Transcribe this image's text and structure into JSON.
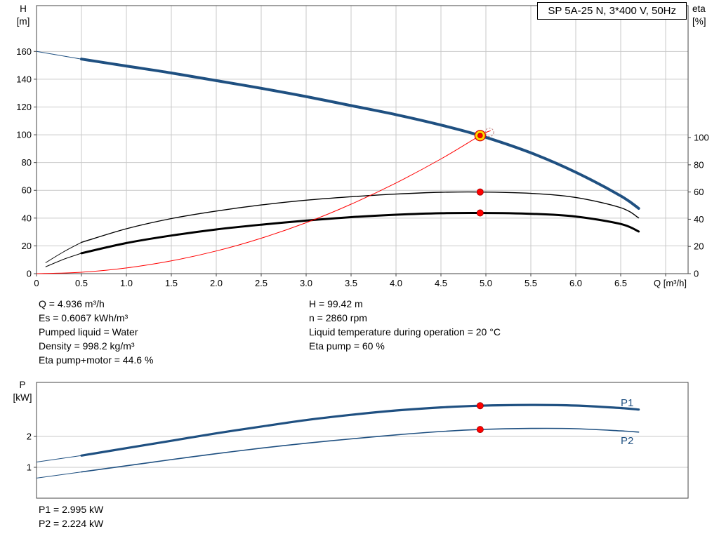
{
  "title_box": "SP 5A-25 N, 3*400 V, 50Hz",
  "axis_units": {
    "h": [
      "H",
      "[m]"
    ],
    "eta": [
      "eta",
      "[%]"
    ],
    "q": "Q [m³/h]",
    "p": [
      "P",
      "[kW]"
    ]
  },
  "curve_labels": {
    "p1": "P1",
    "p2": "P2"
  },
  "info_left": [
    "Q = 4.936 m³/h",
    "Es = 0.6067 kWh/m³",
    "Pumped liquid = Water",
    "Density = 998.2 kg/m³",
    "Eta pump+motor = 44.6 %"
  ],
  "info_right": [
    "H = 99.42 m",
    "n = 2860 rpm",
    "Liquid temperature during operation = 20 °C",
    "Eta pump = 60 %"
  ],
  "power_info": [
    "P1 = 2.995 kW",
    "P2 = 2.224 kW"
  ],
  "colors": {
    "blue": "#1f5081",
    "red": "#ff0000",
    "black": "#000000",
    "grid": "#c9c9c9",
    "border": "#444444",
    "dot_fill": "#ff0000",
    "dot_edge": "#a00000",
    "duty_fill": "#ffd800",
    "duty_ring": "#dd0000",
    "ghost": "#c08585",
    "text": "#000000"
  },
  "chart_data": [
    {
      "id": "main-curve-chart",
      "type": "line",
      "title": "SP 5A-25 N, 3*400 V, 50Hz",
      "xlabel": "Q [m³/h]",
      "ylabel_left": "H [m]",
      "ylabel_right": "eta [%]",
      "xlim": [
        0,
        7.25
      ],
      "ylim_left": [
        0,
        193
      ],
      "ylim_right": [
        0,
        197
      ],
      "grid_vertical": true,
      "x_ticks": [
        0,
        0.5,
        1,
        1.5,
        2,
        2.5,
        3,
        3.5,
        4,
        4.5,
        5,
        5.5,
        6,
        6.5,
        7
      ],
      "x_tick_labels": [
        "0",
        "0.5",
        "1.0",
        "1.5",
        "2.0",
        "2.5",
        "3.0",
        "3.5",
        "4.0",
        "4.5",
        "5.0",
        "5.5",
        "6.0",
        "6.5",
        ""
      ],
      "left_ticks": [
        0,
        20,
        40,
        60,
        80,
        100,
        120,
        140,
        160
      ],
      "right_ticks": [
        0,
        20,
        40,
        60,
        80,
        100
      ],
      "series": [
        {
          "name": "eta-pump-curve",
          "axis": "right",
          "color": "#000000",
          "width": 1.4,
          "thin_lead_until": 0.5,
          "x": [
            0.1,
            0.3,
            0.5,
            1,
            1.5,
            2,
            2.5,
            3,
            3.5,
            4,
            4.5,
            4.936,
            5.5,
            6,
            6.5,
            6.7
          ],
          "y": [
            8,
            16,
            23,
            33,
            40.5,
            46,
            50.5,
            54,
            56.5,
            58.5,
            59.8,
            60,
            59,
            56,
            48.5,
            41
          ]
        },
        {
          "name": "eta-pump-motor-curve",
          "axis": "right",
          "color": "#000000",
          "width": 3,
          "thin_lead_until": 0.5,
          "x": [
            0.1,
            0.3,
            0.5,
            1,
            1.5,
            2,
            2.5,
            3,
            3.5,
            4,
            4.5,
            4.936,
            5.5,
            6,
            6.5,
            6.7
          ],
          "y": [
            5,
            10.5,
            15,
            22.5,
            28,
            32.5,
            36,
            39,
            41.5,
            43.3,
            44.4,
            44.6,
            44,
            42,
            36.5,
            31
          ]
        },
        {
          "name": "hq-curve",
          "axis": "left",
          "color": "#1f5081",
          "width": 4,
          "thin_lead_until": 0.5,
          "x": [
            0,
            0.5,
            1,
            1.5,
            2,
            2.5,
            3,
            3.5,
            4,
            4.5,
            4.936,
            5.5,
            6,
            6.5,
            6.7
          ],
          "y": [
            160,
            154.5,
            149.5,
            144.5,
            139,
            133.5,
            127.5,
            121,
            114.5,
            107,
            99.42,
            87,
            73,
            56,
            47
          ]
        },
        {
          "name": "system-curve",
          "axis": "left",
          "color": "#ff0000",
          "width": 1,
          "x": [
            0,
            0.5,
            1,
            1.5,
            2,
            2.5,
            3,
            3.5,
            4,
            4.5,
            4.936,
            5.05
          ],
          "y": [
            0,
            1.0,
            4.1,
            9.2,
            16.3,
            25.5,
            36.7,
            50.0,
            65.3,
            82.6,
            99.42,
            102.9
          ]
        }
      ],
      "markers": [
        {
          "type": "dot",
          "name": "eta-pump-duty-dot",
          "axis": "right",
          "x": 4.936,
          "y": 60
        },
        {
          "type": "dot",
          "name": "eta-pump-motor-duty-dot",
          "axis": "right",
          "x": 4.936,
          "y": 44.6
        },
        {
          "type": "ghost-point",
          "name": "ghost-duty-point",
          "axis": "left",
          "x": 5.04,
          "y": 101.8
        },
        {
          "type": "duty-point",
          "name": "duty-point",
          "axis": "left",
          "x": 4.936,
          "y": 99.42
        }
      ]
    },
    {
      "id": "power-chart",
      "type": "line",
      "title": "",
      "xlabel": "Q [m³/h]",
      "ylabel_left": "P [kW]",
      "xlim": [
        0,
        7.25
      ],
      "ylim_left": [
        0,
        3.75
      ],
      "grid_vertical": false,
      "left_ticks": [
        1,
        2
      ],
      "series": [
        {
          "name": "p1-curve",
          "axis": "left",
          "color": "#1f5081",
          "width": 3.2,
          "thin_lead_until": 0.5,
          "x": [
            0,
            0.5,
            1,
            1.5,
            2,
            2.5,
            3,
            3.5,
            4,
            4.5,
            4.936,
            5.5,
            6,
            6.5,
            6.7
          ],
          "y": [
            1.17,
            1.38,
            1.62,
            1.86,
            2.1,
            2.32,
            2.53,
            2.7,
            2.84,
            2.94,
            2.995,
            3.02,
            3.0,
            2.92,
            2.87
          ]
        },
        {
          "name": "p2-curve",
          "axis": "left",
          "color": "#1f5081",
          "width": 1.6,
          "thin_lead_until": 0.5,
          "x": [
            0,
            0.5,
            1,
            1.5,
            2,
            2.5,
            3,
            3.5,
            4,
            4.5,
            4.936,
            5.5,
            6,
            6.5,
            6.7
          ],
          "y": [
            0.65,
            0.85,
            1.05,
            1.25,
            1.44,
            1.62,
            1.78,
            1.92,
            2.05,
            2.16,
            2.224,
            2.26,
            2.25,
            2.18,
            2.14
          ]
        }
      ],
      "markers": [
        {
          "type": "dot",
          "name": "p1-duty-dot",
          "axis": "left",
          "x": 4.936,
          "y": 2.995
        },
        {
          "type": "dot",
          "name": "p2-duty-dot",
          "axis": "left",
          "x": 4.936,
          "y": 2.224
        }
      ]
    }
  ]
}
